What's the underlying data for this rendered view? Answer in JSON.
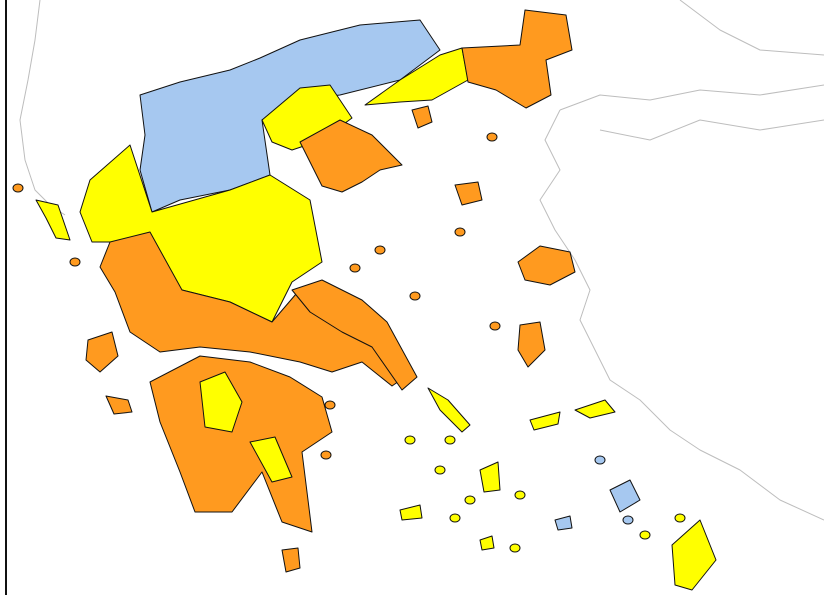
{
  "map": {
    "legend_colors": {
      "level_blue": "#a6c8f0",
      "level_yellow": "#ffff00",
      "level_orange": "#ff9a1f"
    },
    "neighbour_outline_color": "#bdbdbd",
    "border_color": "#111111"
  }
}
